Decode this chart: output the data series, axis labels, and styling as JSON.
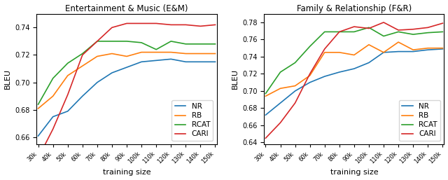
{
  "x_labels": [
    "30k",
    "40k",
    "50k",
    "60k",
    "70k",
    "80k",
    "90k",
    "100k",
    "110k",
    "120k",
    "130k",
    "140k",
    "150k"
  ],
  "x_values": [
    30,
    40,
    50,
    60,
    70,
    80,
    90,
    100,
    110,
    120,
    130,
    140,
    150
  ],
  "em": {
    "NR": [
      0.661,
      0.675,
      0.679,
      0.69,
      0.7,
      0.707,
      0.711,
      0.715,
      0.716,
      0.717,
      0.715,
      0.715,
      0.715
    ],
    "RB": [
      0.681,
      0.69,
      0.705,
      0.712,
      0.719,
      0.721,
      0.719,
      0.722,
      0.722,
      0.722,
      0.721,
      0.721,
      0.721
    ],
    "RCAT": [
      0.684,
      0.703,
      0.714,
      0.721,
      0.73,
      0.73,
      0.73,
      0.729,
      0.724,
      0.73,
      0.728,
      0.728,
      0.728
    ],
    "CARI": [
      0.645,
      0.666,
      0.691,
      0.72,
      0.73,
      0.74,
      0.743,
      0.743,
      0.743,
      0.742,
      0.742,
      0.741,
      0.742
    ]
  },
  "fr": {
    "NR": [
      0.672,
      0.686,
      0.7,
      0.71,
      0.717,
      0.722,
      0.726,
      0.733,
      0.745,
      0.746,
      0.746,
      0.748,
      0.749
    ],
    "RB": [
      0.694,
      0.703,
      0.706,
      0.718,
      0.745,
      0.745,
      0.742,
      0.754,
      0.745,
      0.757,
      0.748,
      0.75,
      0.75
    ],
    "RCAT": [
      0.697,
      0.722,
      0.733,
      0.752,
      0.769,
      0.769,
      0.769,
      0.774,
      0.764,
      0.769,
      0.766,
      0.768,
      0.769
    ],
    "CARI": [
      0.645,
      0.663,
      0.686,
      0.72,
      0.749,
      0.769,
      0.775,
      0.773,
      0.78,
      0.771,
      0.772,
      0.774,
      0.779
    ]
  },
  "colors": {
    "NR": "#1f77b4",
    "RB": "#ff7f0e",
    "RCAT": "#2ca02c",
    "CARI": "#d62728"
  },
  "title_em": "Entertainment & Music (E&M)",
  "title_fr": "Family & Relationship (F&R)",
  "xlabel": "training size",
  "ylabel": "BLEU",
  "ylim_em": [
    0.655,
    0.75
  ],
  "ylim_fr": [
    0.638,
    0.79
  ],
  "yticks_em": [
    0.66,
    0.68,
    0.7,
    0.72,
    0.74
  ],
  "yticks_fr": [
    0.64,
    0.66,
    0.68,
    0.7,
    0.72,
    0.74,
    0.76,
    0.78
  ]
}
